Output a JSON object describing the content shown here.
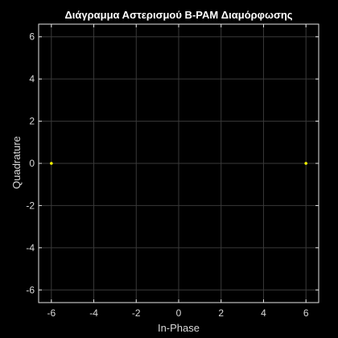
{
  "chart_data": {
    "type": "scatter",
    "title": "Διάγραμμα Αστερισμού B-PAM Διαμόρφωσης",
    "xlabel": "In-Phase",
    "ylabel": "Quadrature",
    "xlim": [
      -6.6,
      6.6
    ],
    "ylim": [
      -6.6,
      6.6
    ],
    "x_ticks": [
      -6,
      -4,
      -2,
      0,
      2,
      4,
      6
    ],
    "y_ticks": [
      -6,
      -4,
      -2,
      0,
      2,
      4,
      6
    ],
    "grid": true,
    "legend": "none",
    "series": [
      {
        "points": [
          {
            "x": -6,
            "y": 0
          },
          {
            "x": 6,
            "y": 0
          }
        ]
      }
    ],
    "colors": {
      "background": "#000000",
      "axes_face": "#000000",
      "axes_edge": "#e6e6e6",
      "grid": "#3a3a3a",
      "text": "#d9d9d9",
      "title": "#ffffff",
      "marker": "#ffff00"
    }
  }
}
